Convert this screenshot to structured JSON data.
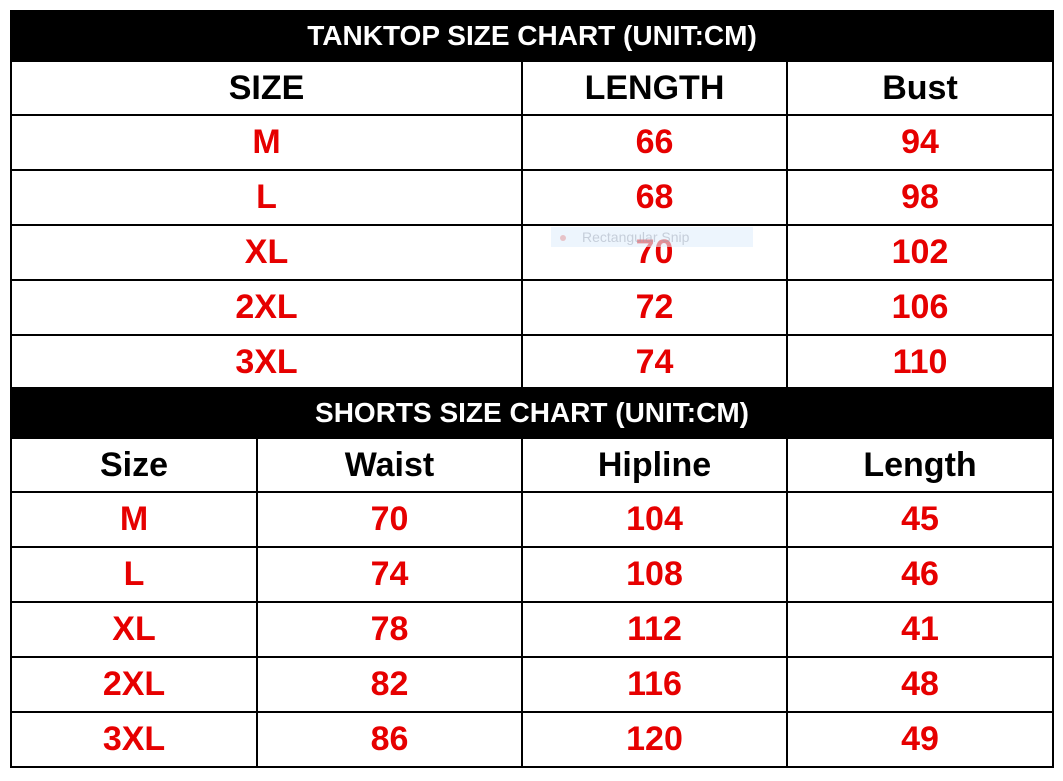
{
  "tanktop": {
    "title": "TANKTOP SIZE CHART (UNIT:CM)",
    "headers": [
      "SIZE",
      "LENGTH",
      "Bust"
    ],
    "rows": [
      [
        "M",
        "66",
        "94"
      ],
      [
        "L",
        "68",
        "98"
      ],
      [
        "XL",
        "70",
        "102"
      ],
      [
        "2XL",
        "72",
        "106"
      ],
      [
        "3XL",
        "74",
        "110"
      ]
    ]
  },
  "shorts": {
    "title": "SHORTS SIZE CHART (UNIT:CM)",
    "headers": [
      "Size",
      "Waist",
      "Hipline",
      "Length"
    ],
    "rows": [
      [
        "M",
        "70",
        "104",
        "45"
      ],
      [
        "L",
        "74",
        "108",
        "46"
      ],
      [
        "XL",
        "78",
        "112",
        "41"
      ],
      [
        "2XL",
        "82",
        "116",
        "48"
      ],
      [
        "3XL",
        "86",
        "120",
        "49"
      ]
    ]
  },
  "overlay": {
    "label": "Rectangular Snip"
  },
  "colors": {
    "header_bg": "#000000",
    "value_text": "#e60000",
    "header_text": "#000000"
  }
}
